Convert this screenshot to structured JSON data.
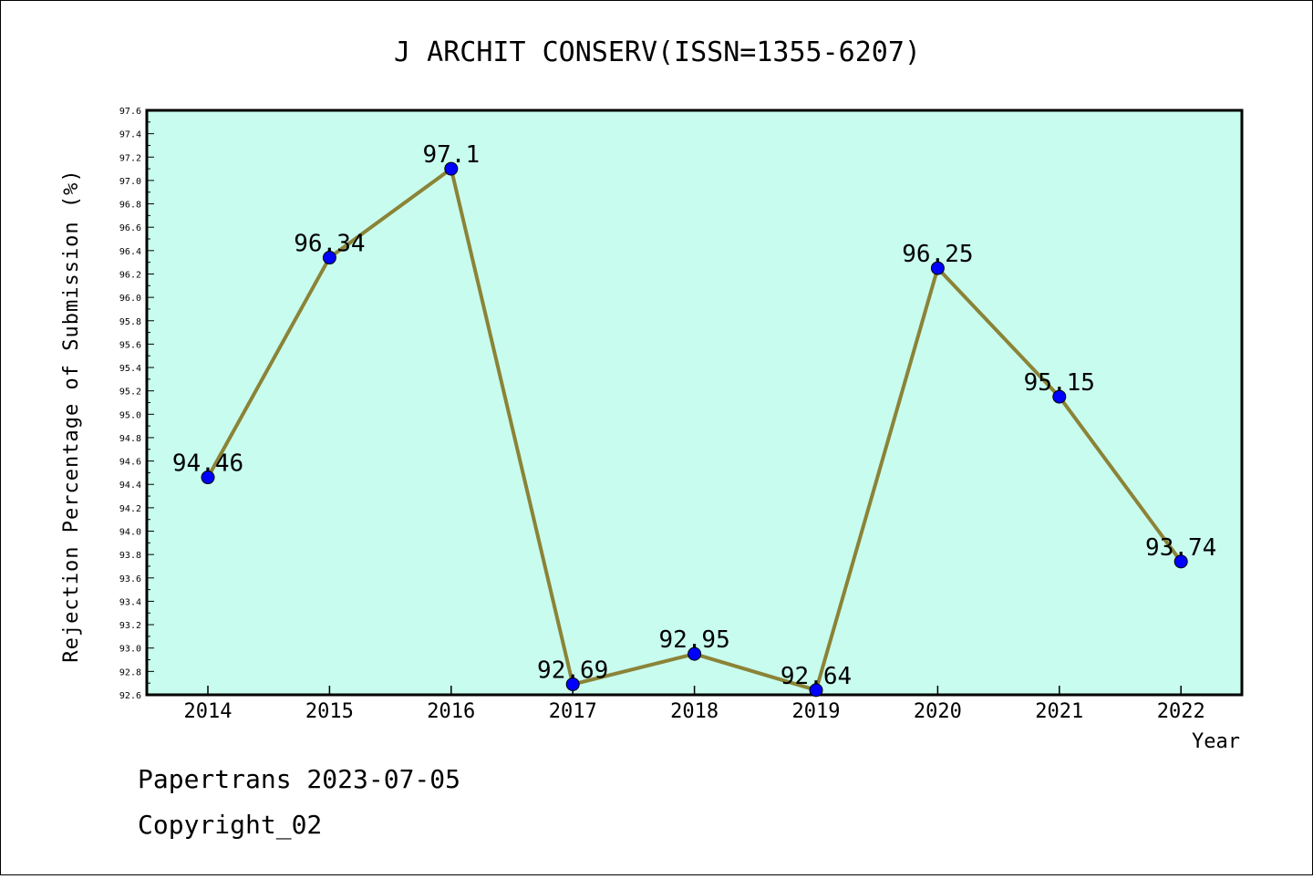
{
  "footer": {
    "line1": "Papertrans 2023-07-05",
    "line2": "Copyright_02"
  },
  "chart_data": {
    "type": "line",
    "title": "J ARCHIT CONSERV(ISSN=1355-6207)",
    "xlabel": "Year",
    "ylabel": "Rejection Percentage of Submission (%)",
    "categories": [
      "2014",
      "2015",
      "2016",
      "2017",
      "2018",
      "2019",
      "2020",
      "2021",
      "2022"
    ],
    "series": [
      {
        "values": [
          94.46,
          96.34,
          97.1,
          92.69,
          92.95,
          92.64,
          96.25,
          95.15,
          93.74
        ],
        "labels": [
          "94.46",
          "96.34",
          "97.1",
          "92.69",
          "92.95",
          "92.64",
          "96.25",
          "95.15",
          "93.74"
        ]
      }
    ],
    "ylim": [
      92.6,
      97.6
    ],
    "ytick_labels": [
      "92.6",
      "92.8",
      "93.0",
      "93.2",
      "93.4",
      "93.6",
      "93.8",
      "94.0",
      "94.2",
      "94.4",
      "94.6",
      "94.8",
      "95.0",
      "95.2",
      "95.4",
      "95.6",
      "95.8",
      "96.0",
      "96.2",
      "96.4",
      "96.6",
      "96.8",
      "97.0",
      "97.2",
      "97.4",
      "97.6"
    ],
    "grid": false,
    "colors": {
      "plot_background": "#c8fcee",
      "line": "#8b8337",
      "marker": "#0000ff"
    }
  }
}
